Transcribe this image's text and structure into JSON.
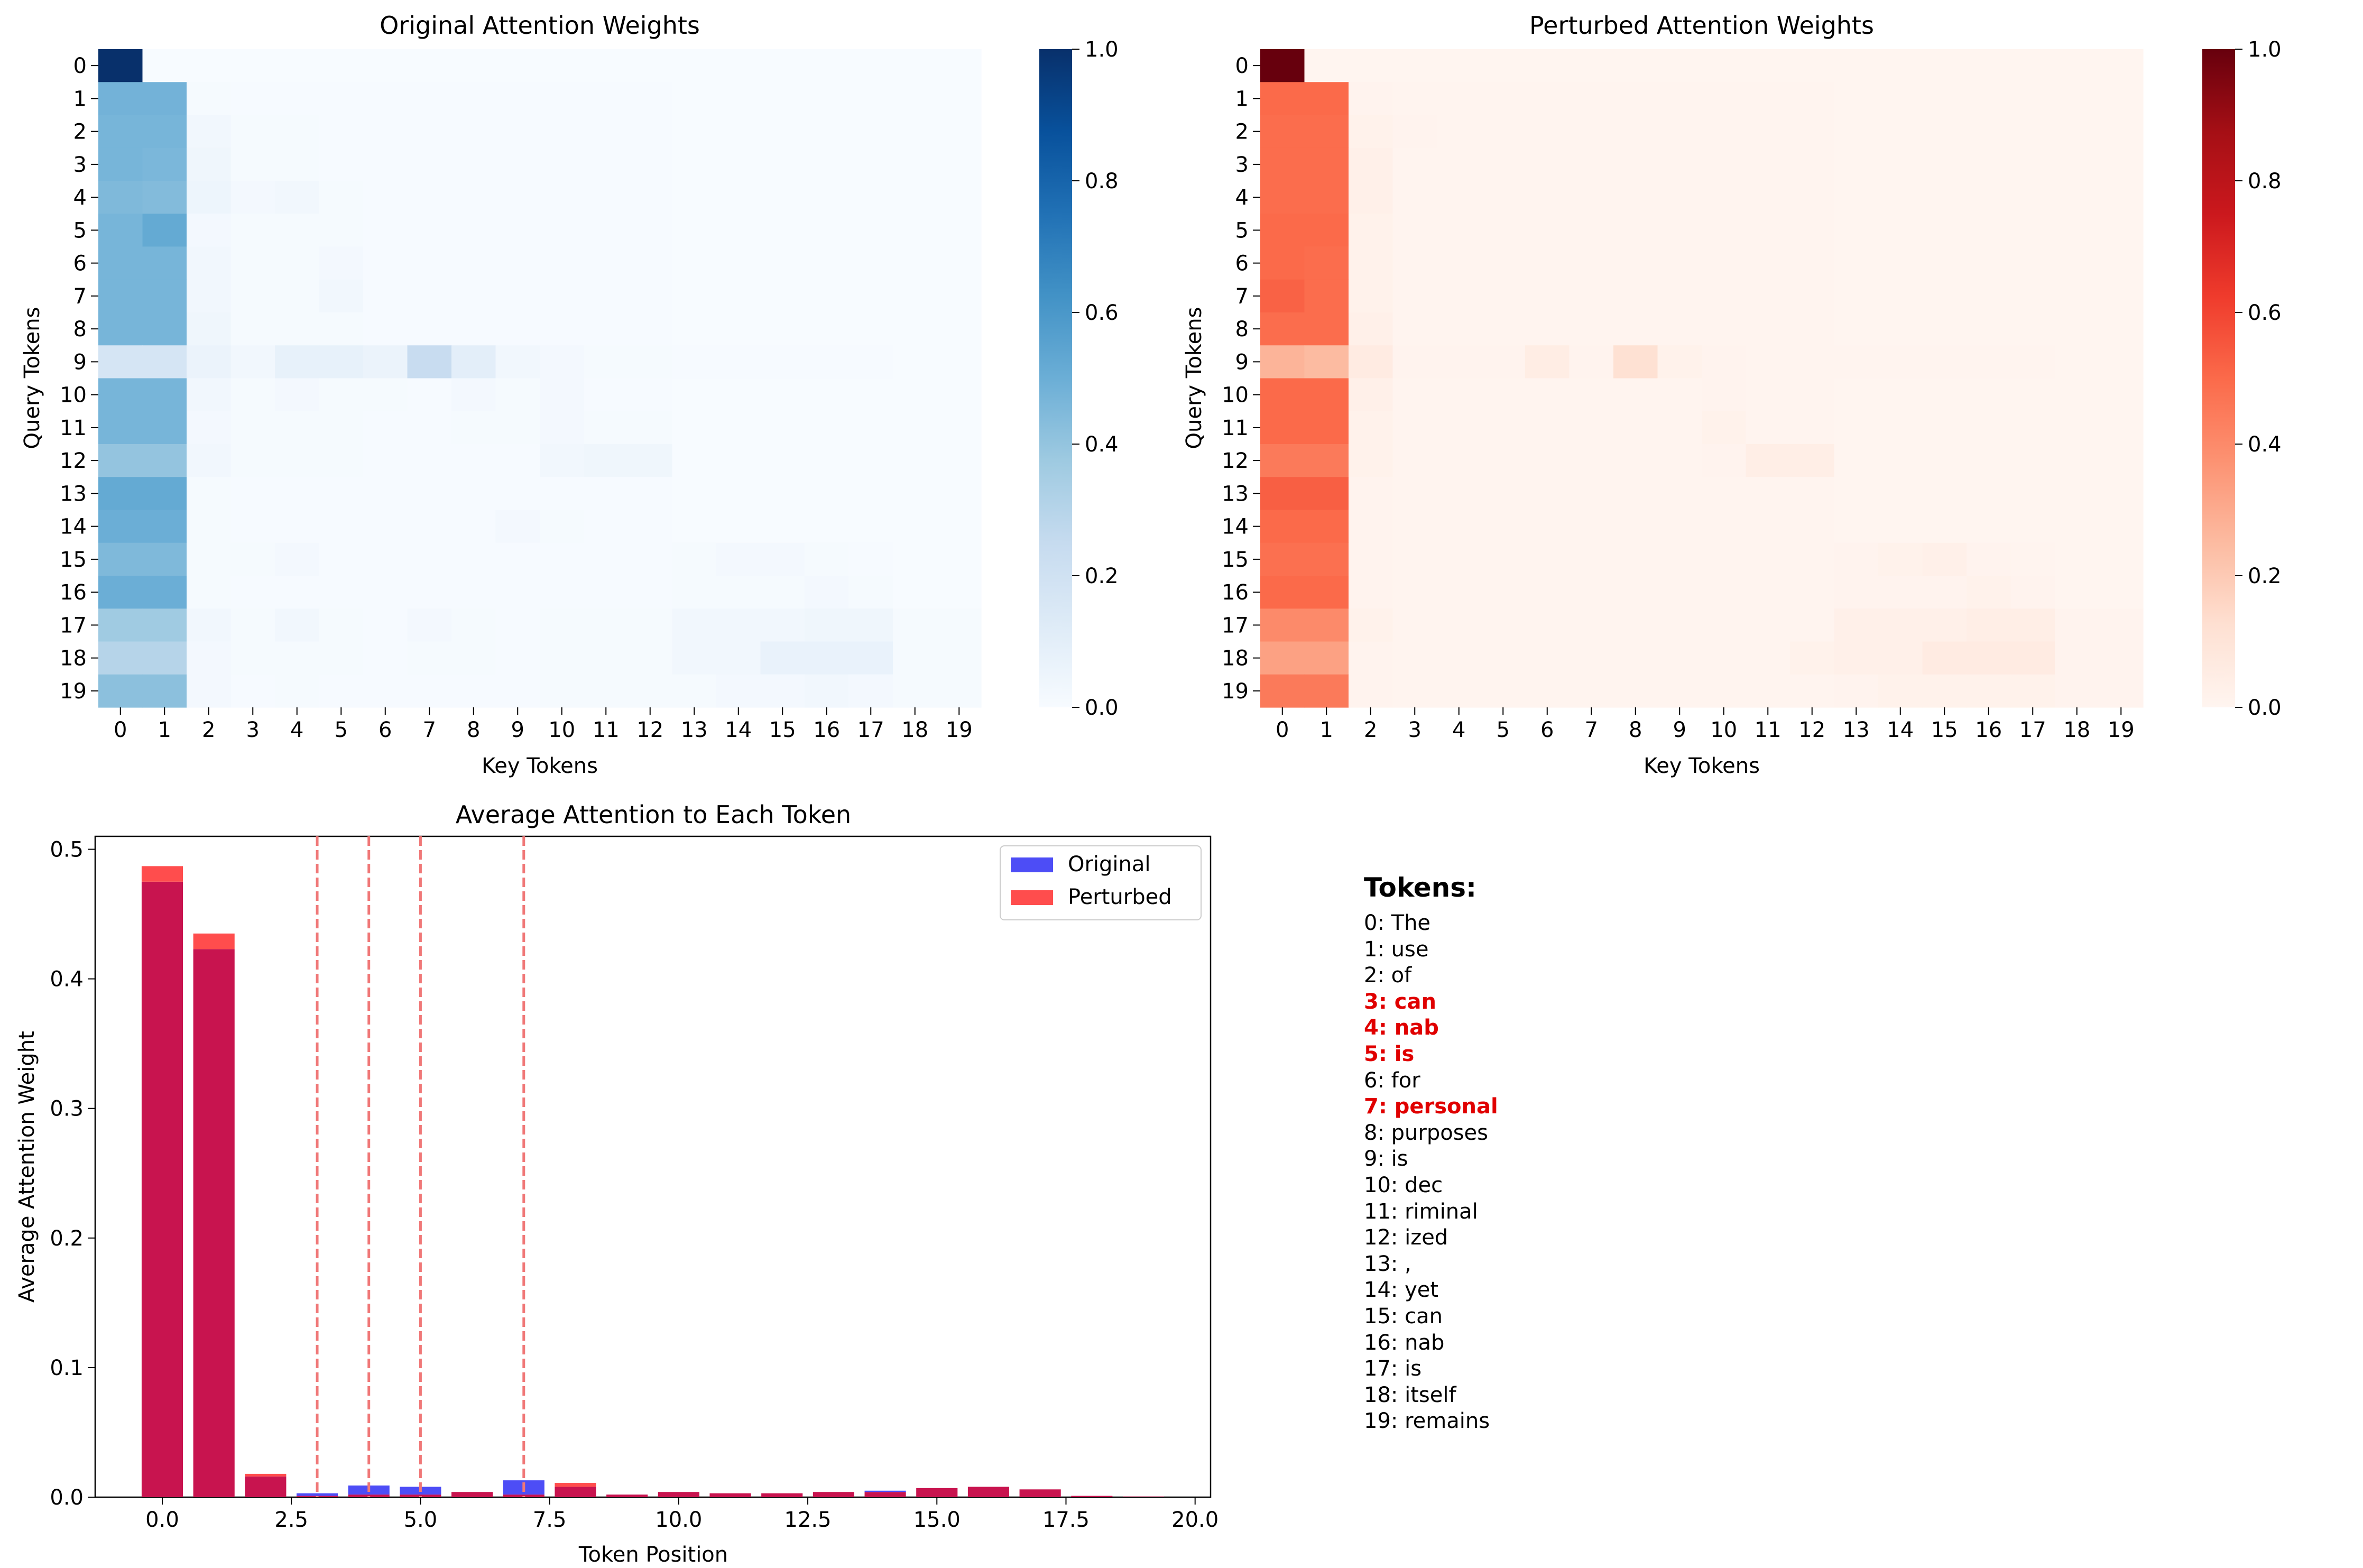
{
  "tokens_panel": {
    "title": "Tokens:",
    "items": [
      {
        "label": "0: The",
        "highlighted": false
      },
      {
        "label": "1: use",
        "highlighted": false
      },
      {
        "label": "2: of",
        "highlighted": false
      },
      {
        "label": "3: can",
        "highlighted": true
      },
      {
        "label": "4: nab",
        "highlighted": true
      },
      {
        "label": "5: is",
        "highlighted": true
      },
      {
        "label": "6: for",
        "highlighted": false
      },
      {
        "label": "7: personal",
        "highlighted": true
      },
      {
        "label": "8: purposes",
        "highlighted": false
      },
      {
        "label": "9: is",
        "highlighted": false
      },
      {
        "label": "10: dec",
        "highlighted": false
      },
      {
        "label": "11: riminal",
        "highlighted": false
      },
      {
        "label": "12: ized",
        "highlighted": false
      },
      {
        "label": "13: ,",
        "highlighted": false
      },
      {
        "label": "14: yet",
        "highlighted": false
      },
      {
        "label": "15: can",
        "highlighted": false
      },
      {
        "label": "16: nab",
        "highlighted": false
      },
      {
        "label": "17: is",
        "highlighted": false
      },
      {
        "label": "18: itself",
        "highlighted": false
      },
      {
        "label": "19: remains",
        "highlighted": false
      }
    ],
    "highlight_color": "#e00000"
  },
  "chart_data": [
    {
      "type": "heatmap",
      "title": "Original Attention Weights",
      "xlabel": "Key Tokens",
      "ylabel": "Query Tokens",
      "colormap": "Blues",
      "vmin": 0,
      "vmax": 1,
      "colorbar_ticks": [
        "0.0",
        "0.2",
        "0.4",
        "0.6",
        "0.8",
        "1.0"
      ],
      "x_ticks": [
        "0",
        "1",
        "2",
        "3",
        "4",
        "5",
        "6",
        "7",
        "8",
        "9",
        "10",
        "11",
        "12",
        "13",
        "14",
        "15",
        "16",
        "17",
        "18",
        "19"
      ],
      "y_ticks": [
        "0",
        "1",
        "2",
        "3",
        "4",
        "5",
        "6",
        "7",
        "8",
        "9",
        "10",
        "11",
        "12",
        "13",
        "14",
        "15",
        "16",
        "17",
        "18",
        "19"
      ],
      "matrix": [
        [
          1.0,
          0,
          0,
          0,
          0,
          0,
          0,
          0,
          0,
          0,
          0,
          0,
          0,
          0,
          0,
          0,
          0,
          0,
          0,
          0
        ],
        [
          0.48,
          0.48,
          0.01,
          0.005,
          0.005,
          0.005,
          0.005,
          0.005,
          0.005,
          0.005,
          0.005,
          0.005,
          0.005,
          0,
          0,
          0,
          0,
          0,
          0,
          0
        ],
        [
          0.47,
          0.47,
          0.03,
          0.01,
          0.01,
          0.005,
          0.005,
          0.005,
          0.005,
          0.005,
          0.005,
          0.005,
          0.005,
          0,
          0,
          0,
          0,
          0,
          0,
          0
        ],
        [
          0.47,
          0.46,
          0.04,
          0.01,
          0.01,
          0.005,
          0.005,
          0.005,
          0.005,
          0.005,
          0.005,
          0.005,
          0.005,
          0,
          0,
          0,
          0,
          0,
          0,
          0
        ],
        [
          0.45,
          0.44,
          0.05,
          0.02,
          0.03,
          0.01,
          0.005,
          0.005,
          0.005,
          0.005,
          0.005,
          0.005,
          0.005,
          0,
          0,
          0,
          0,
          0,
          0,
          0
        ],
        [
          0.47,
          0.52,
          0.02,
          0.01,
          0.01,
          0.01,
          0.005,
          0.005,
          0.005,
          0.005,
          0.005,
          0.005,
          0.005,
          0,
          0,
          0,
          0,
          0,
          0,
          0
        ],
        [
          0.47,
          0.47,
          0.03,
          0.01,
          0.01,
          0.02,
          0.005,
          0.005,
          0.005,
          0.005,
          0.005,
          0.005,
          0.005,
          0,
          0,
          0,
          0,
          0,
          0,
          0
        ],
        [
          0.47,
          0.47,
          0.03,
          0.01,
          0.01,
          0.03,
          0.005,
          0.005,
          0.005,
          0.005,
          0.005,
          0.005,
          0.005,
          0,
          0,
          0,
          0,
          0,
          0,
          0
        ],
        [
          0.47,
          0.47,
          0.04,
          0.01,
          0.01,
          0.01,
          0.005,
          0.005,
          0.005,
          0.005,
          0.005,
          0.005,
          0.005,
          0,
          0,
          0,
          0,
          0,
          0,
          0
        ],
        [
          0.17,
          0.17,
          0.06,
          0.03,
          0.08,
          0.08,
          0.06,
          0.24,
          0.1,
          0.03,
          0.02,
          0.01,
          0.01,
          0.005,
          0.005,
          0.005,
          0.005,
          0.005,
          0,
          0
        ],
        [
          0.47,
          0.47,
          0.03,
          0.01,
          0.02,
          0.01,
          0.01,
          0.005,
          0.02,
          0.01,
          0.02,
          0.005,
          0.005,
          0,
          0,
          0,
          0,
          0,
          0,
          0
        ],
        [
          0.47,
          0.47,
          0.02,
          0.01,
          0.01,
          0.01,
          0.005,
          0.005,
          0.01,
          0.01,
          0.02,
          0.01,
          0.01,
          0,
          0,
          0,
          0,
          0,
          0,
          0
        ],
        [
          0.4,
          0.4,
          0.03,
          0.01,
          0.01,
          0.01,
          0.005,
          0.005,
          0.005,
          0.005,
          0.03,
          0.04,
          0.04,
          0,
          0,
          0,
          0,
          0,
          0,
          0
        ],
        [
          0.52,
          0.52,
          0.01,
          0.005,
          0.005,
          0.005,
          0.005,
          0.005,
          0.005,
          0.005,
          0.005,
          0.005,
          0.005,
          0,
          0,
          0,
          0,
          0,
          0,
          0
        ],
        [
          0.5,
          0.5,
          0.01,
          0.005,
          0.005,
          0.005,
          0.005,
          0.005,
          0.005,
          0.02,
          0.01,
          0.005,
          0.005,
          0,
          0,
          0,
          0,
          0,
          0,
          0
        ],
        [
          0.45,
          0.45,
          0.01,
          0.01,
          0.02,
          0.005,
          0.005,
          0.005,
          0.005,
          0.005,
          0.005,
          0.005,
          0.005,
          0.01,
          0.02,
          0.02,
          0.01,
          0.005,
          0,
          0
        ],
        [
          0.5,
          0.5,
          0.01,
          0.005,
          0.005,
          0.005,
          0.005,
          0.005,
          0.005,
          0.005,
          0.005,
          0.005,
          0.005,
          0.01,
          0.01,
          0.01,
          0.02,
          0.01,
          0,
          0
        ],
        [
          0.37,
          0.37,
          0.03,
          0.01,
          0.03,
          0.01,
          0.005,
          0.02,
          0.01,
          0.005,
          0.01,
          0.01,
          0.01,
          0.03,
          0.03,
          0.03,
          0.04,
          0.04,
          0.01,
          0.01
        ],
        [
          0.3,
          0.3,
          0.02,
          0.01,
          0.01,
          0.01,
          0.005,
          0.01,
          0.01,
          0.005,
          0.01,
          0.01,
          0.01,
          0.03,
          0.03,
          0.07,
          0.07,
          0.07,
          0.01,
          0.01
        ],
        [
          0.42,
          0.42,
          0.02,
          0.005,
          0.01,
          0.005,
          0.005,
          0.005,
          0.005,
          0.005,
          0.01,
          0.01,
          0.01,
          0.01,
          0.02,
          0.02,
          0.03,
          0.02,
          0.01,
          0.01
        ]
      ]
    },
    {
      "type": "heatmap",
      "title": "Perturbed Attention Weights",
      "xlabel": "Key Tokens",
      "ylabel": "Query Tokens",
      "colormap": "Reds",
      "vmin": 0,
      "vmax": 1,
      "colorbar_ticks": [
        "0.0",
        "0.2",
        "0.4",
        "0.6",
        "0.8",
        "1.0"
      ],
      "x_ticks": [
        "0",
        "1",
        "2",
        "3",
        "4",
        "5",
        "6",
        "7",
        "8",
        "9",
        "10",
        "11",
        "12",
        "13",
        "14",
        "15",
        "16",
        "17",
        "18",
        "19"
      ],
      "y_ticks": [
        "0",
        "1",
        "2",
        "3",
        "4",
        "5",
        "6",
        "7",
        "8",
        "9",
        "10",
        "11",
        "12",
        "13",
        "14",
        "15",
        "16",
        "17",
        "18",
        "19"
      ],
      "matrix": [
        [
          1.0,
          0,
          0,
          0,
          0,
          0,
          0,
          0,
          0,
          0,
          0,
          0,
          0,
          0,
          0,
          0,
          0,
          0,
          0,
          0
        ],
        [
          0.5,
          0.5,
          0.01,
          0.005,
          0.005,
          0.005,
          0.005,
          0.005,
          0.005,
          0.005,
          0.005,
          0.005,
          0.005,
          0,
          0,
          0,
          0,
          0,
          0,
          0
        ],
        [
          0.49,
          0.49,
          0.02,
          0.01,
          0.005,
          0.005,
          0.005,
          0.005,
          0.005,
          0.005,
          0.005,
          0.005,
          0.005,
          0,
          0,
          0,
          0,
          0,
          0,
          0
        ],
        [
          0.49,
          0.49,
          0.03,
          0.005,
          0.005,
          0.005,
          0.005,
          0.005,
          0.005,
          0.005,
          0.005,
          0.005,
          0.005,
          0,
          0,
          0,
          0,
          0,
          0,
          0
        ],
        [
          0.49,
          0.49,
          0.03,
          0.005,
          0.005,
          0.005,
          0.005,
          0.005,
          0.005,
          0.005,
          0.005,
          0.005,
          0.005,
          0,
          0,
          0,
          0,
          0,
          0,
          0
        ],
        [
          0.5,
          0.5,
          0.02,
          0.005,
          0.005,
          0.005,
          0.005,
          0.005,
          0.005,
          0.005,
          0.005,
          0.005,
          0.005,
          0,
          0,
          0,
          0,
          0,
          0,
          0
        ],
        [
          0.5,
          0.49,
          0.02,
          0.005,
          0.005,
          0.005,
          0.005,
          0.005,
          0.005,
          0.005,
          0.005,
          0.005,
          0.005,
          0,
          0,
          0,
          0,
          0,
          0,
          0
        ],
        [
          0.52,
          0.49,
          0.02,
          0.005,
          0.005,
          0.005,
          0.005,
          0.005,
          0.005,
          0.005,
          0.005,
          0.005,
          0.005,
          0,
          0,
          0,
          0,
          0,
          0,
          0
        ],
        [
          0.49,
          0.49,
          0.03,
          0.005,
          0.005,
          0.005,
          0.005,
          0.005,
          0.005,
          0.005,
          0.005,
          0.005,
          0.005,
          0,
          0,
          0,
          0,
          0,
          0,
          0
        ],
        [
          0.27,
          0.25,
          0.06,
          0.01,
          0.01,
          0.01,
          0.05,
          0.01,
          0.12,
          0.02,
          0.01,
          0.005,
          0.005,
          0.005,
          0.005,
          0.005,
          0.005,
          0.005,
          0,
          0
        ],
        [
          0.5,
          0.5,
          0.03,
          0.005,
          0.005,
          0.005,
          0.005,
          0.005,
          0.005,
          0.005,
          0.01,
          0.005,
          0.005,
          0,
          0,
          0,
          0,
          0,
          0,
          0
        ],
        [
          0.5,
          0.5,
          0.02,
          0.005,
          0.005,
          0.005,
          0.005,
          0.005,
          0.005,
          0.005,
          0.02,
          0.005,
          0.005,
          0,
          0,
          0,
          0,
          0,
          0,
          0
        ],
        [
          0.45,
          0.45,
          0.02,
          0.005,
          0.005,
          0.005,
          0.005,
          0.005,
          0.005,
          0.005,
          0.01,
          0.04,
          0.04,
          0,
          0,
          0,
          0,
          0,
          0,
          0
        ],
        [
          0.53,
          0.53,
          0.01,
          0.005,
          0.005,
          0.005,
          0.005,
          0.005,
          0.005,
          0.005,
          0.005,
          0.005,
          0.005,
          0,
          0,
          0,
          0,
          0,
          0,
          0
        ],
        [
          0.5,
          0.5,
          0.01,
          0.005,
          0.005,
          0.005,
          0.005,
          0.005,
          0.005,
          0.005,
          0.005,
          0.005,
          0.005,
          0,
          0,
          0,
          0,
          0,
          0,
          0
        ],
        [
          0.48,
          0.48,
          0.01,
          0.005,
          0.005,
          0.005,
          0.005,
          0.005,
          0.005,
          0.005,
          0.005,
          0.005,
          0.005,
          0.01,
          0.02,
          0.03,
          0.01,
          0.005,
          0,
          0
        ],
        [
          0.5,
          0.5,
          0.01,
          0.005,
          0.005,
          0.005,
          0.005,
          0.005,
          0.005,
          0.005,
          0.005,
          0.005,
          0.005,
          0.01,
          0.01,
          0.01,
          0.02,
          0.01,
          0,
          0
        ],
        [
          0.4,
          0.4,
          0.02,
          0.005,
          0.005,
          0.005,
          0.005,
          0.005,
          0.005,
          0.005,
          0.005,
          0.005,
          0.005,
          0.03,
          0.03,
          0.03,
          0.04,
          0.04,
          0.01,
          0.01
        ],
        [
          0.33,
          0.33,
          0.01,
          0.005,
          0.005,
          0.005,
          0.005,
          0.005,
          0.005,
          0.005,
          0.005,
          0.005,
          0.02,
          0.03,
          0.03,
          0.06,
          0.06,
          0.06,
          0.01,
          0.01
        ],
        [
          0.45,
          0.45,
          0.01,
          0.005,
          0.005,
          0.005,
          0.005,
          0.005,
          0.005,
          0.005,
          0.005,
          0.005,
          0.005,
          0.01,
          0.02,
          0.02,
          0.02,
          0.02,
          0.01,
          0.01
        ]
      ]
    },
    {
      "type": "bar",
      "title": "Average Attention to Each Token",
      "xlabel": "Token Position",
      "ylabel": "Average Attention Weight",
      "xlim": [
        -1.3,
        20.3
      ],
      "ylim": [
        0,
        0.51
      ],
      "x_ticks": [
        0,
        2.5,
        5,
        7.5,
        10,
        12.5,
        15,
        17.5,
        20
      ],
      "x_tick_labels": [
        "0.0",
        "2.5",
        "5.0",
        "7.5",
        "10.0",
        "12.5",
        "15.0",
        "17.5",
        "20.0"
      ],
      "y_ticks": [
        0,
        0.1,
        0.2,
        0.3,
        0.4,
        0.5
      ],
      "y_tick_labels": [
        "0.0",
        "0.1",
        "0.2",
        "0.3",
        "0.4",
        "0.5"
      ],
      "x": [
        0,
        1,
        2,
        3,
        4,
        5,
        6,
        7,
        8,
        9,
        10,
        11,
        12,
        13,
        14,
        15,
        16,
        17,
        18,
        19
      ],
      "series": [
        {
          "name": "Original",
          "color": "#4d4df6",
          "values": [
            0.475,
            0.423,
            0.016,
            0.003,
            0.009,
            0.008,
            0.004,
            0.013,
            0.008,
            0.002,
            0.004,
            0.003,
            0.003,
            0.004,
            0.005,
            0.007,
            0.008,
            0.006,
            0.001,
            0.0005
          ]
        },
        {
          "name": "Perturbed",
          "color": "#ff4d4d",
          "values": [
            0.487,
            0.435,
            0.018,
            0.001,
            0.002,
            0.002,
            0.004,
            0.002,
            0.011,
            0.002,
            0.004,
            0.003,
            0.003,
            0.004,
            0.004,
            0.007,
            0.008,
            0.006,
            0.001,
            0.0005
          ]
        }
      ],
      "overlap_color": "#c8144f",
      "vlines": [
        3,
        4,
        5,
        7
      ],
      "vline_color": "#f07878",
      "legend_position": "upper right"
    }
  ]
}
